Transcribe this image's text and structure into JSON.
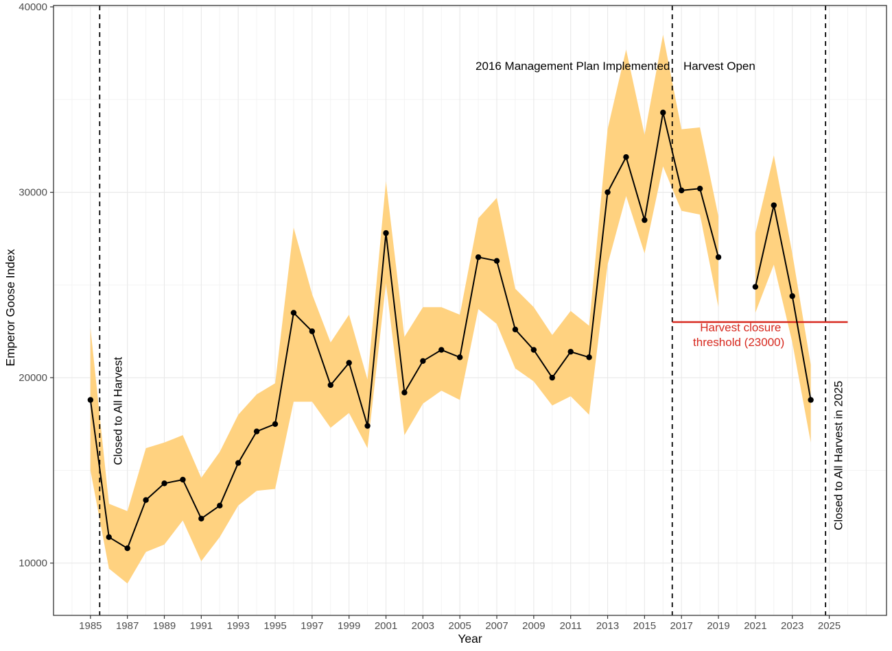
{
  "chart_data": {
    "type": "line",
    "title": "",
    "xlabel": "Year",
    "ylabel": "Emperor Goose Index",
    "x_range": [
      1983,
      2028.1
    ],
    "y_range": [
      7180,
      40075
    ],
    "x_ticks": [
      1985,
      1987,
      1989,
      1991,
      1993,
      1995,
      1997,
      1999,
      2001,
      2003,
      2005,
      2007,
      2009,
      2011,
      2013,
      2015,
      2017,
      2019,
      2021,
      2023,
      2025
    ],
    "x_major_grid": [
      1985,
      1987,
      1989,
      1991,
      1993,
      1995,
      1997,
      1999,
      2001,
      2003,
      2005,
      2007,
      2009,
      2011,
      2013,
      2015,
      2017,
      2019,
      2021,
      2023,
      2025,
      2027
    ],
    "x_minor_grid": [
      1984,
      1986,
      1988,
      1990,
      1992,
      1994,
      1996,
      1998,
      2000,
      2002,
      2004,
      2006,
      2008,
      2010,
      2012,
      2014,
      2016,
      2018,
      2020,
      2022,
      2024,
      2026
    ],
    "y_ticks": [
      10000,
      20000,
      30000,
      40000
    ],
    "y_minor_grid": [
      15000,
      25000,
      35000
    ],
    "grid_on": true,
    "legend": "none",
    "series": [
      {
        "name": "Emperor Goose Index (point estimate with confidence ribbon)",
        "points": [
          {
            "year": 1985,
            "value": 18800,
            "lower": 15000,
            "upper": 22700
          },
          {
            "year": 1986,
            "value": 11400,
            "lower": 9700,
            "upper": 13200
          },
          {
            "year": 1987,
            "value": 10800,
            "lower": 8900,
            "upper": 12800
          },
          {
            "year": 1988,
            "value": 13400,
            "lower": 10600,
            "upper": 16200
          },
          {
            "year": 1989,
            "value": 14300,
            "lower": 11000,
            "upper": 16500
          },
          {
            "year": 1990,
            "value": 14500,
            "lower": 12300,
            "upper": 16900
          },
          {
            "year": 1991,
            "value": 12400,
            "lower": 10100,
            "upper": 14600
          },
          {
            "year": 1992,
            "value": 13100,
            "lower": 11400,
            "upper": 16000
          },
          {
            "year": 1993,
            "value": 15400,
            "lower": 13100,
            "upper": 18000
          },
          {
            "year": 1994,
            "value": 17100,
            "lower": 13900,
            "upper": 19100
          },
          {
            "year": 1995,
            "value": 17500,
            "lower": 14000,
            "upper": 19700
          },
          {
            "year": 1996,
            "value": 23500,
            "lower": 18700,
            "upper": 28100
          },
          {
            "year": 1997,
            "value": 22500,
            "lower": 18700,
            "upper": 24500
          },
          {
            "year": 1998,
            "value": 19600,
            "lower": 17300,
            "upper": 21900
          },
          {
            "year": 1999,
            "value": 20800,
            "lower": 18100,
            "upper": 23400
          },
          {
            "year": 2000,
            "value": 17400,
            "lower": 16200,
            "upper": 19900
          },
          {
            "year": 2001,
            "value": 27800,
            "lower": 25100,
            "upper": 30600
          },
          {
            "year": 2002,
            "value": 19200,
            "lower": 16900,
            "upper": 22200
          },
          {
            "year": 2003,
            "value": 20900,
            "lower": 18600,
            "upper": 23800
          },
          {
            "year": 2004,
            "value": 21500,
            "lower": 19300,
            "upper": 23800
          },
          {
            "year": 2005,
            "value": 21100,
            "lower": 18800,
            "upper": 23400
          },
          {
            "year": 2006,
            "value": 26500,
            "lower": 23700,
            "upper": 28600
          },
          {
            "year": 2007,
            "value": 26300,
            "lower": 22900,
            "upper": 29700
          },
          {
            "year": 2008,
            "value": 22600,
            "lower": 20500,
            "upper": 24800
          },
          {
            "year": 2009,
            "value": 21500,
            "lower": 19800,
            "upper": 23800
          },
          {
            "year": 2010,
            "value": 20000,
            "lower": 18500,
            "upper": 22300
          },
          {
            "year": 2011,
            "value": 21400,
            "lower": 19000,
            "upper": 23600
          },
          {
            "year": 2012,
            "value": 21100,
            "lower": 18000,
            "upper": 22800
          },
          {
            "year": 2013,
            "value": 30000,
            "lower": 26100,
            "upper": 33400
          },
          {
            "year": 2014,
            "value": 31900,
            "lower": 29800,
            "upper": 37700
          },
          {
            "year": 2015,
            "value": 28500,
            "lower": 26700,
            "upper": 33100
          },
          {
            "year": 2016,
            "value": 34300,
            "lower": 31400,
            "upper": 38500
          },
          {
            "year": 2017,
            "value": 30100,
            "lower": 29000,
            "upper": 33400
          },
          {
            "year": 2018,
            "value": 30200,
            "lower": 28800,
            "upper": 33500
          },
          {
            "year": 2019,
            "value": 26500,
            "lower": 23800,
            "upper": 28700
          },
          {
            "year": 2021,
            "value": 24900,
            "lower": 23500,
            "upper": 27800
          },
          {
            "year": 2022,
            "value": 29300,
            "lower": 26100,
            "upper": 32000
          },
          {
            "year": 2023,
            "value": 24400,
            "lower": 21900,
            "upper": 26700
          },
          {
            "year": 2024,
            "value": 18800,
            "lower": 16500,
            "upper": 20700
          }
        ]
      }
    ],
    "threshold": {
      "value": 23000,
      "x_start": 2016.5,
      "x_end": 2026.0
    },
    "vlines": [
      {
        "x": 1985.5,
        "meaning": "harvest-closure-start"
      },
      {
        "x": 2016.5,
        "meaning": "2016-management-plan"
      },
      {
        "x": 2024.8,
        "meaning": "2025-harvest-closure"
      }
    ],
    "annotations": [
      {
        "text": "2016 Management Plan Implemented",
        "year": 2016.38,
        "value": 36800,
        "anchor": "end",
        "rotate": 0,
        "color": "#000000"
      },
      {
        "text": "Harvest Open",
        "year": 2019.05,
        "value": 36800,
        "anchor": "middle",
        "rotate": 0,
        "color": "#000000"
      },
      {
        "text": "Closed to All Harvest",
        "year": 1986.5,
        "value": 18200,
        "anchor": "middle",
        "rotate": -90,
        "color": "#000000"
      },
      {
        "text": "Closed to All Harvest in 2025",
        "year": 2025.5,
        "value": 15800,
        "anchor": "middle",
        "rotate": -90,
        "color": "#000000"
      },
      {
        "text": "Harvest closure",
        "year": 2020.2,
        "value": 22700,
        "anchor": "middle",
        "rotate": 0,
        "color": "#D7281E"
      },
      {
        "text": "threshold (23000)",
        "year": 2020.1,
        "value": 21900,
        "anchor": "middle",
        "rotate": 0,
        "color": "#D7281E"
      }
    ],
    "colors": {
      "ribbon": "#FFD280",
      "line": "#000000",
      "point": "#000000",
      "threshold": "#D7281E",
      "grid_major": "#E8E8E8",
      "grid_minor": "#F3F3F3",
      "axis_text": "#4D4D4D",
      "panel_border": "#333333",
      "vline": "#000000",
      "background": "#FFFFFF"
    }
  }
}
